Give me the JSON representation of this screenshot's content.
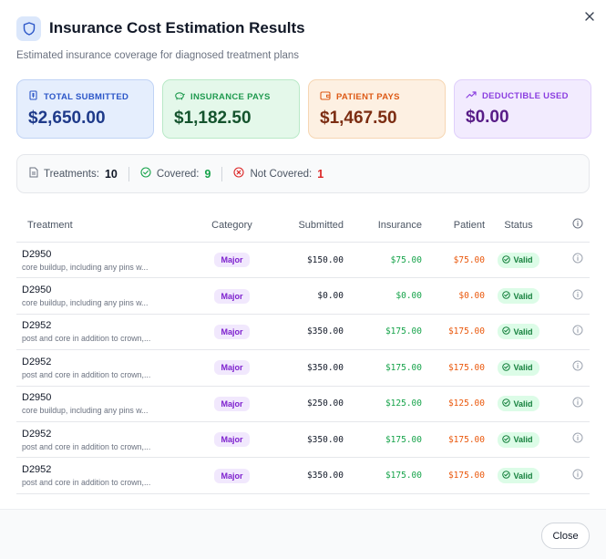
{
  "dialog": {
    "title": "Insurance Cost Estimation Results",
    "subtitle": "Estimated insurance coverage for diagnosed treatment plans",
    "icon": "shield-icon",
    "close_icon": "close-icon"
  },
  "cards": [
    {
      "label": "TOTAL SUBMITTED",
      "amount": "$2,650.00",
      "icon": "receipt-icon",
      "color": "#2b56c8"
    },
    {
      "label": "INSURANCE PAYS",
      "amount": "$1,182.50",
      "icon": "piggy-bank-icon",
      "color": "#1f9a4f"
    },
    {
      "label": "PATIENT PAYS",
      "amount": "$1,467.50",
      "icon": "wallet-icon",
      "color": "#dd5a16"
    },
    {
      "label": "DEDUCTIBLE USED",
      "amount": "$0.00",
      "icon": "trending-up-icon",
      "color": "#8b3fe0"
    }
  ],
  "summary": {
    "treatments_label": "Treatments:",
    "treatments_value": "10",
    "covered_label": "Covered:",
    "covered_value": "9",
    "not_covered_label": "Not Covered:",
    "not_covered_value": "1"
  },
  "table": {
    "headers": {
      "treatment": "Treatment",
      "category": "Category",
      "submitted": "Submitted",
      "insurance": "Insurance",
      "patient": "Patient",
      "status": "Status"
    },
    "rows": [
      {
        "code": "D2950",
        "description": "core buildup, including any pins w...",
        "category": "Major",
        "submitted": "$150.00",
        "insurance": "$75.00",
        "patient": "$75.00",
        "status": "Valid"
      },
      {
        "code": "D2950",
        "description": "core buildup, including any pins w...",
        "category": "Major",
        "submitted": "$0.00",
        "insurance": "$0.00",
        "patient": "$0.00",
        "status": "Valid"
      },
      {
        "code": "D2952",
        "description": "post and core in addition to crown,...",
        "category": "Major",
        "submitted": "$350.00",
        "insurance": "$175.00",
        "patient": "$175.00",
        "status": "Valid"
      },
      {
        "code": "D2952",
        "description": "post and core in addition to crown,...",
        "category": "Major",
        "submitted": "$350.00",
        "insurance": "$175.00",
        "patient": "$175.00",
        "status": "Valid"
      },
      {
        "code": "D2950",
        "description": "core buildup, including any pins w...",
        "category": "Major",
        "submitted": "$250.00",
        "insurance": "$125.00",
        "patient": "$125.00",
        "status": "Valid"
      },
      {
        "code": "D2952",
        "description": "post and core in addition to crown,...",
        "category": "Major",
        "submitted": "$350.00",
        "insurance": "$175.00",
        "patient": "$175.00",
        "status": "Valid"
      },
      {
        "code": "D2952",
        "description": "post and core in addition to crown,...",
        "category": "Major",
        "submitted": "$350.00",
        "insurance": "$175.00",
        "patient": "$175.00",
        "status": "Valid"
      }
    ]
  },
  "footer": {
    "close_label": "Close"
  }
}
